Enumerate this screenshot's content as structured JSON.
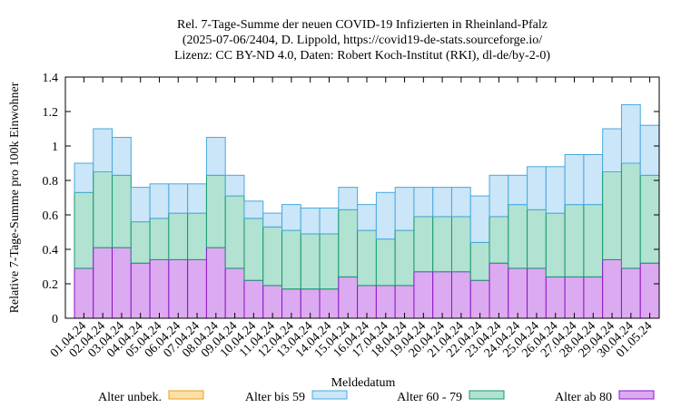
{
  "chart_data": {
    "type": "bar",
    "stacked": true,
    "title_lines": [
      "Rel. 7-Tage-Summe der neuen COVID-19 Infizierten in Rheinland-Pfalz",
      "(2025-07-06/2404, D. Lippold, https://covid19-de-stats.sourceforge.io/",
      "Lizenz: CC BY-ND 4.0, Daten: Robert Koch-Institut (RKI), dl-de/by-2-0)"
    ],
    "xlabel": "Meldedatum",
    "ylabel": "Relative 7-Tage-Summe pro 100k Einwohner",
    "ylim": [
      0,
      1.4
    ],
    "yticks": [
      "0",
      "0.2",
      "0.4",
      "0.6",
      "0.8",
      "1",
      "1.2",
      "1.4"
    ],
    "categories": [
      "01.04.24",
      "02.04.24",
      "03.04.24",
      "04.04.24",
      "05.04.24",
      "06.04.24",
      "07.04.24",
      "08.04.24",
      "09.04.24",
      "10.04.24",
      "11.04.24",
      "12.04.24",
      "13.04.24",
      "14.04.24",
      "15.04.24",
      "16.04.24",
      "17.04.24",
      "18.04.24",
      "19.04.24",
      "20.04.24",
      "21.04.24",
      "22.04.24",
      "23.04.24",
      "24.04.24",
      "25.04.24",
      "26.04.24",
      "27.04.24",
      "28.04.24",
      "29.04.24",
      "30.04.24",
      "01.05.24"
    ],
    "grid": false,
    "legend_position": "bottom",
    "series": [
      {
        "name": "Alter ab 80",
        "fill": "#dcaaf0",
        "stroke": "#8c16c8",
        "values": [
          0.29,
          0.41,
          0.41,
          0.32,
          0.34,
          0.34,
          0.34,
          0.41,
          0.29,
          0.22,
          0.19,
          0.17,
          0.17,
          0.17,
          0.24,
          0.19,
          0.19,
          0.19,
          0.27,
          0.27,
          0.27,
          0.22,
          0.32,
          0.29,
          0.29,
          0.24,
          0.24,
          0.24,
          0.34,
          0.29,
          0.32
        ]
      },
      {
        "name": "Alter 60 - 79",
        "fill": "#b2e2d2",
        "stroke": "#169a70",
        "values": [
          0.44,
          0.44,
          0.42,
          0.24,
          0.24,
          0.27,
          0.27,
          0.42,
          0.42,
          0.36,
          0.34,
          0.34,
          0.32,
          0.32,
          0.39,
          0.32,
          0.27,
          0.32,
          0.32,
          0.32,
          0.32,
          0.22,
          0.27,
          0.37,
          0.34,
          0.37,
          0.42,
          0.42,
          0.51,
          0.61,
          0.51
        ]
      },
      {
        "name": "Alter bis 59",
        "fill": "#cae6f8",
        "stroke": "#4aa8dc",
        "values": [
          0.17,
          0.25,
          0.22,
          0.2,
          0.2,
          0.17,
          0.17,
          0.22,
          0.12,
          0.1,
          0.08,
          0.15,
          0.15,
          0.15,
          0.13,
          0.15,
          0.27,
          0.25,
          0.17,
          0.17,
          0.17,
          0.27,
          0.24,
          0.17,
          0.25,
          0.27,
          0.29,
          0.29,
          0.25,
          0.34,
          0.29
        ]
      },
      {
        "name": "Alter unbek.",
        "fill": "#fbe0a8",
        "stroke": "#e8a020",
        "values": [
          0,
          0,
          0,
          0,
          0,
          0,
          0,
          0,
          0,
          0,
          0,
          0,
          0,
          0,
          0,
          0,
          0,
          0,
          0,
          0,
          0,
          0,
          0,
          0,
          0,
          0,
          0,
          0,
          0,
          0,
          0
        ]
      }
    ],
    "legend": [
      "Alter unbek.",
      "Alter bis 59",
      "Alter 60 - 79",
      "Alter ab 80"
    ]
  }
}
